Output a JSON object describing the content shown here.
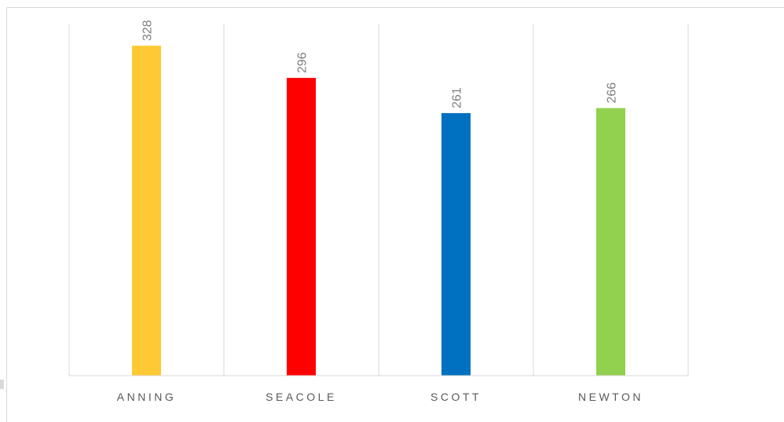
{
  "chart_data": {
    "type": "bar",
    "categories": [
      "ANNING",
      "SEACOLE",
      "SCOTT",
      "NEWTON"
    ],
    "values": [
      328,
      296,
      261,
      266
    ],
    "colors": [
      "#FFC935",
      "#FF0000",
      "#0070C0",
      "#92D050"
    ],
    "title": "",
    "xlabel": "",
    "ylabel": "",
    "ylim": [
      0,
      350
    ],
    "grid": "vertical category separators",
    "legend": "none",
    "data_labels": true,
    "data_label_color": "#7F7F7F",
    "axis_color": "#D9D9D9"
  }
}
